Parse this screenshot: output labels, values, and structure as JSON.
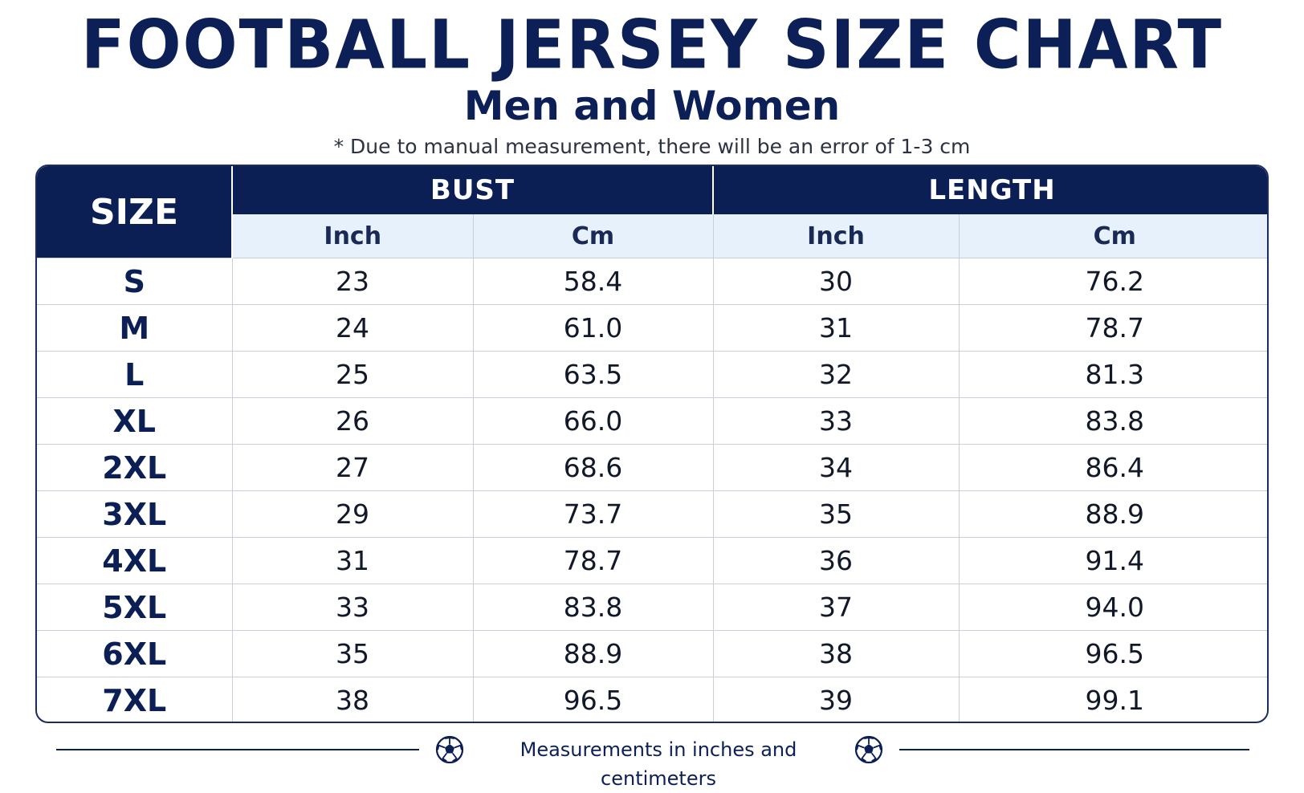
{
  "header": {
    "title": "FOOTBALL JERSEY SIZE CHART",
    "subtitle": "Men and Women",
    "note": "*  Due to manual measurement, there will be an error of 1-3 cm"
  },
  "table": {
    "size_header": "SIZE",
    "groups": [
      "BUST",
      "LENGTH"
    ],
    "units": [
      "Inch",
      "Cm",
      "Inch",
      "Cm"
    ],
    "rows": [
      {
        "size": "S",
        "bust_inch": "23",
        "bust_cm": "58.4",
        "length_inch": "30",
        "length_cm": "76.2"
      },
      {
        "size": "M",
        "bust_inch": "24",
        "bust_cm": "61.0",
        "length_inch": "31",
        "length_cm": "78.7"
      },
      {
        "size": "L",
        "bust_inch": "25",
        "bust_cm": "63.5",
        "length_inch": "32",
        "length_cm": "81.3"
      },
      {
        "size": "XL",
        "bust_inch": "26",
        "bust_cm": "66.0",
        "length_inch": "33",
        "length_cm": "83.8"
      },
      {
        "size": "2XL",
        "bust_inch": "27",
        "bust_cm": "68.6",
        "length_inch": "34",
        "length_cm": "86.4"
      },
      {
        "size": "3XL",
        "bust_inch": "29",
        "bust_cm": "73.7",
        "length_inch": "35",
        "length_cm": "88.9"
      },
      {
        "size": "4XL",
        "bust_inch": "31",
        "bust_cm": "78.7",
        "length_inch": "36",
        "length_cm": "91.4"
      },
      {
        "size": "5XL",
        "bust_inch": "33",
        "bust_cm": "83.8",
        "length_inch": "37",
        "length_cm": "94.0"
      },
      {
        "size": "6XL",
        "bust_inch": "35",
        "bust_cm": "88.9",
        "length_inch": "38",
        "length_cm": "96.5"
      },
      {
        "size": "7XL",
        "bust_inch": "38",
        "bust_cm": "96.5",
        "length_inch": "39",
        "length_cm": "99.1"
      }
    ]
  },
  "footer": {
    "text": "Measurements in inches and centimeters",
    "icons": [
      "soccer-ball-icon",
      "soccer-ball-icon"
    ]
  },
  "colors": {
    "navy": "#0b1f54",
    "unit_row_bg": "#e6f1fc",
    "grid": "#c8cfdb"
  }
}
